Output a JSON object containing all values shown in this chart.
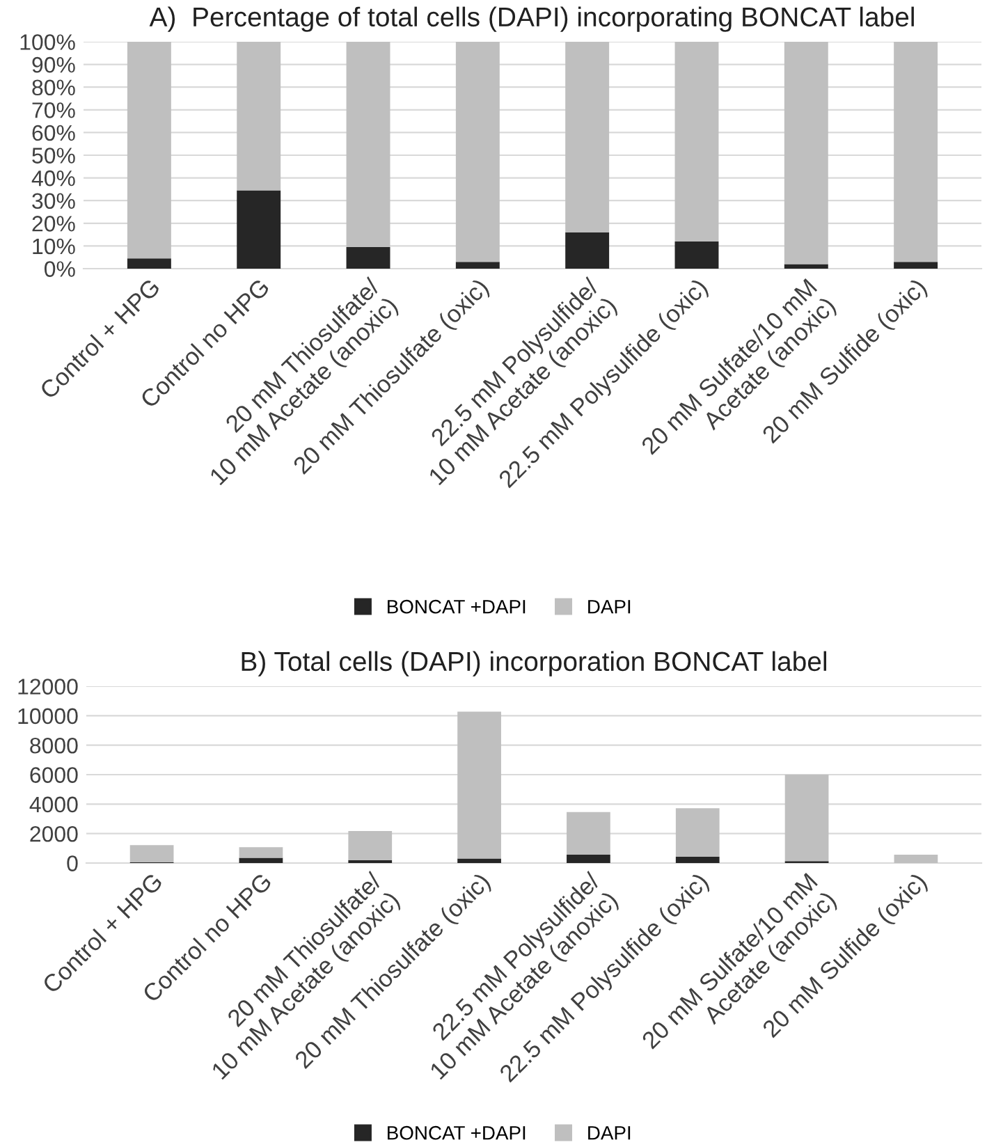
{
  "chart_data": [
    {
      "type": "bar",
      "title": "A)  Percentage of total cells (DAPI) incorporating BONCAT label",
      "stacked": true,
      "categories": [
        "Control + HPG",
        "Control no HPG",
        "20 mM Thiosulfate/\n10 mM Acetate (anoxic)",
        "20 mM Thiosulfate (oxic)",
        "22.5 mM Polysulfide/\n10 mM Acetate (anoxic)",
        "22.5 mM Polysulfide (oxic)",
        "20 mM Sulfate/10 mM\nAcetate (anoxic)",
        "20 mM Sulfide (oxic)"
      ],
      "series": [
        {
          "name": "BONCAT +DAPI",
          "color": "#262626",
          "values": [
            4.5,
            34.5,
            9.5,
            3,
            16,
            12,
            2,
            3
          ]
        },
        {
          "name": "DAPI",
          "color": "#bfbfbf",
          "values": [
            95.5,
            65.5,
            90.5,
            97,
            84,
            88,
            98,
            97
          ]
        }
      ],
      "ylim": [
        0,
        100
      ],
      "yticks": [
        {
          "value": 0,
          "label": "0%"
        },
        {
          "value": 10,
          "label": "10%"
        },
        {
          "value": 20,
          "label": "20%"
        },
        {
          "value": 30,
          "label": "30%"
        },
        {
          "value": 40,
          "label": "40%"
        },
        {
          "value": 50,
          "label": "50%"
        },
        {
          "value": 60,
          "label": "60%"
        },
        {
          "value": 70,
          "label": "70%"
        },
        {
          "value": 80,
          "label": "80%"
        },
        {
          "value": 90,
          "label": "90%"
        },
        {
          "value": 100,
          "label": "100%"
        }
      ],
      "grid": "y",
      "legend": "bottom"
    },
    {
      "type": "bar",
      "title": "B) Total cells (DAPI) incorporation BONCAT label",
      "stacked": true,
      "categories": [
        "Control + HPG",
        "Control no HPG",
        "20 mM Thiosulfate/\n10 mM Acetate (anoxic)",
        "20 mM Thiosulfate (oxic)",
        "22.5 mM Polysulfide/\n10 mM Acetate (anoxic)",
        "22.5 mM Polysulfide (oxic)",
        "20 mM Sulfate/10 mM\nAcetate (anoxic)",
        "20 mM Sulfide (oxic)"
      ],
      "series": [
        {
          "name": "BONCAT +DAPI",
          "color": "#262626",
          "values": [
            50,
            360,
            200,
            310,
            570,
            430,
            130,
            null
          ]
        },
        {
          "name": "DAPI",
          "color": "#bfbfbf",
          "values": [
            1170,
            720,
            1970,
            9960,
            2890,
            3290,
            5870,
            570
          ]
        }
      ],
      "ylim": [
        0,
        12000
      ],
      "yticks": [
        0,
        2000,
        4000,
        6000,
        8000,
        10000,
        12000
      ],
      "grid": "y",
      "legend": "bottom"
    }
  ]
}
